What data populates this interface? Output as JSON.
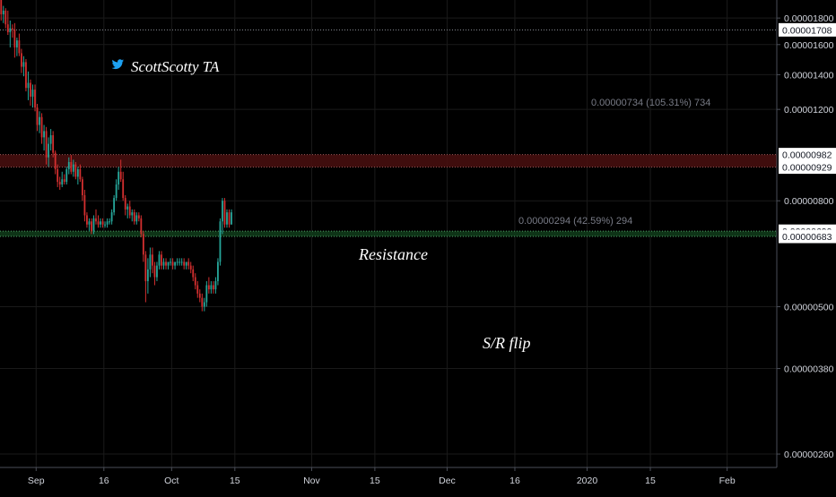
{
  "chart_data": {
    "type": "candlestick",
    "price_scale": "log",
    "ylim": [
      2.45e-06,
      1.95e-05
    ],
    "y_ticks": [
      "0.00001800",
      "0.00001600",
      "0.00001400",
      "0.00001200",
      "0.00000800",
      "0.00000500",
      "0.00000380",
      "0.00000260"
    ],
    "x_ticks": [
      {
        "label": "Sep",
        "date": "2019-09-01"
      },
      {
        "label": "16",
        "date": "2019-09-16"
      },
      {
        "label": "Oct",
        "date": "2019-10-01"
      },
      {
        "label": "15",
        "date": "2019-10-15"
      },
      {
        "label": "Nov",
        "date": "2019-11-01"
      },
      {
        "label": "15",
        "date": "2019-11-15"
      },
      {
        "label": "Dec",
        "date": "2019-12-01"
      },
      {
        "label": "16",
        "date": "2019-12-16"
      },
      {
        "label": "2020",
        "date": "2020-01-01"
      },
      {
        "label": "15",
        "date": "2020-01-15"
      },
      {
        "label": "Feb",
        "date": "2020-02-01"
      }
    ],
    "x_range": [
      "2019-08-24",
      "2020-02-12"
    ],
    "levels": [
      {
        "name": "top",
        "value": "0.00001708",
        "price": 1.708e-05
      },
      {
        "name": "resistance-upper",
        "value": "0.00000982",
        "price": 9.82e-06
      },
      {
        "name": "resistance-lower",
        "value": "0.00000929",
        "price": 9.29e-06
      },
      {
        "name": "flip-upper",
        "value": "0.00000699",
        "price": 6.99e-06
      },
      {
        "name": "flip-lower",
        "value": "0.00000683",
        "price": 6.83e-06
      }
    ],
    "annotations": {
      "watermark": "ScottScotty TA",
      "measure_top": "0.00000734 (105.31%) 734",
      "measure_mid": "0.00000294 (42.59%) 294",
      "resistance_label": "Resistance",
      "flip_label": "S/R flip"
    },
    "series": [
      {
        "start_date": "2019-08-24",
        "interval_hours": 12,
        "ohlc": [
          [
            1.95e-05,
            1.97e-05,
            1.78e-05,
            1.83e-05
          ],
          [
            1.83e-05,
            1.9e-05,
            1.76e-05,
            1.86e-05
          ],
          [
            1.86e-05,
            1.88e-05,
            1.72e-05,
            1.75e-05
          ],
          [
            1.75e-05,
            1.86e-05,
            1.67e-05,
            1.69e-05
          ],
          [
            1.69e-05,
            1.78e-05,
            1.58e-05,
            1.72e-05
          ],
          [
            1.72e-05,
            1.75e-05,
            1.65e-05,
            1.71e-05
          ],
          [
            1.71e-05,
            1.76e-05,
            1.51e-05,
            1.58e-05
          ],
          [
            1.58e-05,
            1.65e-05,
            1.52e-05,
            1.63e-05
          ],
          [
            1.63e-05,
            1.68e-05,
            1.52e-05,
            1.54e-05
          ],
          [
            1.54e-05,
            1.57e-05,
            1.41e-05,
            1.45e-05
          ],
          [
            1.45e-05,
            1.52e-05,
            1.39e-05,
            1.48e-05
          ],
          [
            1.48e-05,
            1.5e-05,
            1.3e-05,
            1.32e-05
          ],
          [
            1.32e-05,
            1.42e-05,
            1.25e-05,
            1.35e-05
          ],
          [
            1.35e-05,
            1.37e-05,
            1.22e-05,
            1.27e-05
          ],
          [
            1.27e-05,
            1.34e-05,
            1.21e-05,
            1.31e-05
          ],
          [
            1.31e-05,
            1.34e-05,
            1.19e-05,
            1.21e-05
          ],
          [
            1.21e-05,
            1.23e-05,
            1.09e-05,
            1.12e-05
          ],
          [
            1.12e-05,
            1.19e-05,
            1.08e-05,
            1.16e-05
          ],
          [
            1.16e-05,
            1.18e-05,
            1.03e-05,
            1.06e-05
          ],
          [
            1.06e-05,
            1.12e-05,
            1e-05,
            1.09e-05
          ],
          [
            1.09e-05,
            1.11e-05,
            9.4e-06,
            9.7e-06
          ],
          [
            9.7e-06,
            1.06e-05,
            9.3e-06,
            1.03e-05
          ],
          [
            1.03e-05,
            1.1e-05,
            1e-05,
            1.07e-05
          ],
          [
            1.07e-05,
            1.09e-05,
            9.7e-06,
            9.9e-06
          ],
          [
            9.9e-06,
            1e-05,
            9e-06,
            9.2e-06
          ],
          [
            9.2e-06,
            9.4e-06,
            8.5e-06,
            8.7e-06
          ],
          [
            8.7e-06,
            8.9e-06,
            8.4e-06,
            8.6e-06
          ],
          [
            8.6e-06,
            9.1e-06,
            8.5e-06,
            8.8e-06
          ],
          [
            8.8e-06,
            9e-06,
            8.6e-06,
            8.7e-06
          ],
          [
            8.7e-06,
            9.3e-06,
            8.6e-06,
            9.2e-06
          ],
          [
            9.2e-06,
            9.7e-06,
            9e-06,
            9.5e-06
          ],
          [
            9.5e-06,
            9.8e-06,
            9e-06,
            9.1e-06
          ],
          [
            9.1e-06,
            9.6e-06,
            8.9e-06,
            9.4e-06
          ],
          [
            9.4e-06,
            9.5e-06,
            8.8e-06,
            8.9e-06
          ],
          [
            8.9e-06,
            9.3e-06,
            8.6e-06,
            9.2e-06
          ],
          [
            9.2e-06,
            9.4e-06,
            8.7e-06,
            8.8e-06
          ],
          [
            8.8e-06,
            8.9e-06,
            8e-06,
            8.2e-06
          ],
          [
            8.2e-06,
            8.4e-06,
            7.3e-06,
            7.5e-06
          ],
          [
            7.5e-06,
            7.6e-06,
            7.1e-06,
            7.2e-06
          ],
          [
            7.2e-06,
            7.4e-06,
            7e-06,
            7.3e-06
          ],
          [
            7.3e-06,
            7.4e-06,
            6.9e-06,
            7e-06
          ],
          [
            7e-06,
            7.5e-06,
            6.9e-06,
            7.4e-06
          ],
          [
            7.4e-06,
            7.7e-06,
            7.2e-06,
            7.3e-06
          ],
          [
            7.3e-06,
            7.5e-06,
            7.1e-06,
            7.2e-06
          ],
          [
            7.2e-06,
            7.4e-06,
            7.1e-06,
            7.3e-06
          ],
          [
            7.3e-06,
            7.4e-06,
            7.1e-06,
            7.2e-06
          ],
          [
            7.2e-06,
            7.3e-06,
            7.1e-06,
            7.2e-06
          ],
          [
            7.2e-06,
            7.4e-06,
            7.1e-06,
            7.3e-06
          ],
          [
            7.3e-06,
            7.4e-06,
            7.2e-06,
            7.3e-06
          ],
          [
            7.3e-06,
            7.7e-06,
            7.2e-06,
            7.6e-06
          ],
          [
            7.6e-06,
            8.2e-06,
            7.5e-06,
            8.1e-06
          ],
          [
            8.1e-06,
            8.8e-06,
            8e-06,
            8.6e-06
          ],
          [
            8.6e-06,
            9.3e-06,
            8.4e-06,
            9.1e-06
          ],
          [
            9.1e-06,
            9.6e-06,
            8.7e-06,
            8.8e-06
          ],
          [
            8.8e-06,
            9.1e-06,
            8e-06,
            8.1e-06
          ],
          [
            8.1e-06,
            8.2e-06,
            7.5e-06,
            7.7e-06
          ],
          [
            7.7e-06,
            7.9e-06,
            7.4e-06,
            7.8e-06
          ],
          [
            7.8e-06,
            8e-06,
            7.4e-06,
            7.5e-06
          ],
          [
            7.5e-06,
            7.7e-06,
            7.3e-06,
            7.6e-06
          ],
          [
            7.6e-06,
            7.7e-06,
            7.2e-06,
            7.3e-06
          ],
          [
            7.3e-06,
            7.6e-06,
            7.2e-06,
            7.5e-06
          ],
          [
            7.5e-06,
            7.6e-06,
            7.3e-06,
            7.4e-06
          ],
          [
            7.4e-06,
            7.5e-06,
            6.8e-06,
            6.9e-06
          ],
          [
            6.9e-06,
            7e-06,
            6.1e-06,
            6.3e-06
          ],
          [
            6.3e-06,
            6.4e-06,
            5.1e-06,
            5.6e-06
          ],
          [
            5.6e-06,
            6.2e-06,
            5.3e-06,
            5.9e-06
          ],
          [
            5.9e-06,
            6.5e-06,
            5.7e-06,
            6.3e-06
          ],
          [
            6.3e-06,
            6.5e-06,
            5.8e-06,
            6e-06
          ],
          [
            6e-06,
            6.1e-06,
            5.5e-06,
            5.7e-06
          ],
          [
            5.7e-06,
            6.1e-06,
            5.6e-06,
            6e-06
          ],
          [
            6e-06,
            6.4e-06,
            5.9e-06,
            6.3e-06
          ],
          [
            6.3e-06,
            6.4e-06,
            5.9e-06,
            6e-06
          ],
          [
            6e-06,
            6.2e-06,
            5.9e-06,
            6.1e-06
          ],
          [
            6.1e-06,
            6.2e-06,
            5.9e-06,
            6e-06
          ],
          [
            6e-06,
            6.1e-06,
            5.9e-06,
            6.1e-06
          ],
          [
            6.1e-06,
            6.2e-06,
            6e-06,
            6.1e-06
          ],
          [
            6.1e-06,
            6.2e-06,
            5.9e-06,
            6e-06
          ],
          [
            6e-06,
            6.1e-06,
            5.9e-06,
            6.1e-06
          ],
          [
            6.1e-06,
            6.2e-06,
            6e-06,
            6.1e-06
          ],
          [
            6.1e-06,
            6.2e-06,
            6e-06,
            6.1e-06
          ],
          [
            6.1e-06,
            6.2e-06,
            6e-06,
            6.1e-06
          ],
          [
            6.1e-06,
            6.2e-06,
            5.9e-06,
            6e-06
          ],
          [
            6e-06,
            6.1e-06,
            5.9e-06,
            6.1e-06
          ],
          [
            6.1e-06,
            6.2e-06,
            5.9e-06,
            6e-06
          ],
          [
            6e-06,
            6.1e-06,
            5.8e-06,
            5.9e-06
          ],
          [
            5.9e-06,
            6e-06,
            5.6e-06,
            5.7e-06
          ],
          [
            5.7e-06,
            5.8e-06,
            5.4e-06,
            5.5e-06
          ],
          [
            5.5e-06,
            5.6e-06,
            5.2e-06,
            5.3e-06
          ],
          [
            5.3e-06,
            5.4e-06,
            5.1e-06,
            5.2e-06
          ],
          [
            5.2e-06,
            5.3e-06,
            4.9e-06,
            5e-06
          ],
          [
            5e-06,
            5.2e-06,
            4.9e-06,
            5.1e-06
          ],
          [
            5.1e-06,
            5.6e-06,
            5e-06,
            5.5e-06
          ],
          [
            5.5e-06,
            5.7e-06,
            5.3e-06,
            5.4e-06
          ],
          [
            5.4e-06,
            5.6e-06,
            5.3e-06,
            5.5e-06
          ],
          [
            5.5e-06,
            5.6e-06,
            5.3e-06,
            5.4e-06
          ],
          [
            5.4e-06,
            5.7e-06,
            5.3e-06,
            5.6e-06
          ],
          [
            5.6e-06,
            6.2e-06,
            5.5e-06,
            6.1e-06
          ],
          [
            6.1e-06,
            7.4e-06,
            6e-06,
            7.3e-06
          ],
          [
            7.3e-06,
            8.1e-06,
            6.9e-06,
            8e-06
          ],
          [
            8e-06,
            8.1e-06,
            7.1e-06,
            7.2e-06
          ],
          [
            7.2e-06,
            7.7e-06,
            7.1e-06,
            7.6e-06
          ],
          [
            7.6e-06,
            7.7e-06,
            7.1e-06,
            7.2e-06
          ],
          [
            7.2e-06,
            7.7e-06,
            7.2e-06,
            7.6e-06
          ]
        ]
      }
    ]
  },
  "colors": {
    "bull": "#26a69a",
    "bear": "#d32f2f",
    "grid": "#1a1a1a",
    "axis_text": "#d1d4dc",
    "label_bg": "#ffffff",
    "label_text": "#131722",
    "resistance_zone": "#4a0f0f",
    "flip_zone": "#0f3a1a",
    "twitter": "#1da1f2"
  }
}
